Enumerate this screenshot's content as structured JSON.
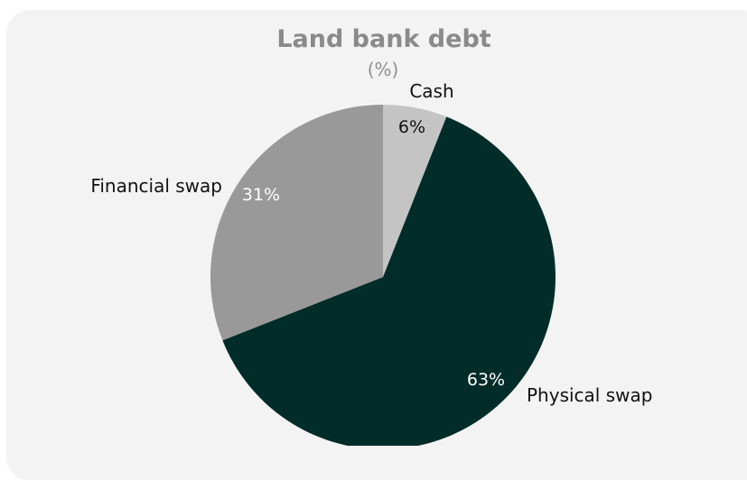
{
  "chart_data": {
    "type": "pie",
    "title": "Land bank debt",
    "subtitle": "(%)",
    "categories": [
      "Cash",
      "Physical swap",
      "Financial swap"
    ],
    "values": [
      6,
      63,
      31
    ],
    "value_labels": [
      "6%",
      "63%",
      "31%"
    ],
    "colors": [
      "#c4c4c4",
      "#022c28",
      "#999999"
    ],
    "value_label_colors": [
      "#111111",
      "#ffffff",
      "#ffffff"
    ],
    "start": "12 o'clock, clockwise",
    "legend": "none"
  }
}
